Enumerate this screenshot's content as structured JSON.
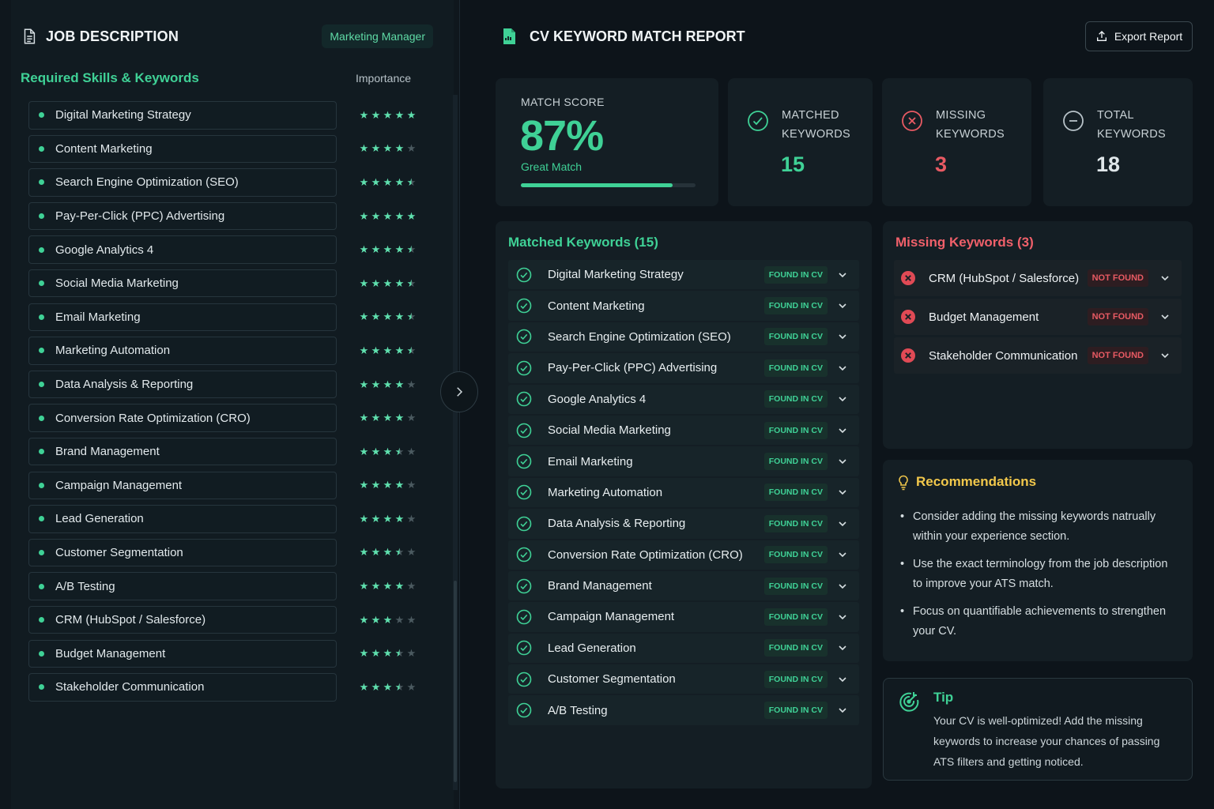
{
  "job_description": {
    "title": "JOB DESCRIPTION",
    "role_badge": "Marketing Manager",
    "section_title": "Required Skills & Keywords",
    "importance_label": "Importance",
    "skills": [
      {
        "name": "Digital Marketing Strategy",
        "rating": 5
      },
      {
        "name": "Content Marketing",
        "rating": 4
      },
      {
        "name": "Search Engine Optimization (SEO)",
        "rating": 4.5
      },
      {
        "name": "Pay-Per-Click (PPC) Advertising",
        "rating": 5
      },
      {
        "name": "Google Analytics 4",
        "rating": 4.5
      },
      {
        "name": "Social Media Marketing",
        "rating": 4.5
      },
      {
        "name": "Email Marketing",
        "rating": 4.5
      },
      {
        "name": "Marketing Automation",
        "rating": 4.5
      },
      {
        "name": "Data Analysis & Reporting",
        "rating": 4
      },
      {
        "name": "Conversion Rate Optimization (CRO)",
        "rating": 4
      },
      {
        "name": "Brand Management",
        "rating": 3.5
      },
      {
        "name": "Campaign Management",
        "rating": 4
      },
      {
        "name": "Lead Generation",
        "rating": 4
      },
      {
        "name": "Customer Segmentation",
        "rating": 3.5
      },
      {
        "name": "A/B Testing",
        "rating": 4
      },
      {
        "name": "CRM (HubSpot / Salesforce)",
        "rating": 3
      },
      {
        "name": "Budget Management",
        "rating": 3.5
      },
      {
        "name": "Stakeholder Communication",
        "rating": 3.5
      }
    ]
  },
  "report": {
    "title": "CV KEYWORD MATCH REPORT",
    "export_label": "Export Report",
    "match_score_label": "MATCH SCORE",
    "match_score": "87%",
    "match_score_fraction": 0.87,
    "match_quality": "Great Match",
    "matched_label": "MATCHED KEYWORDS",
    "matched_count": "15",
    "missing_label": "MISSING KEYWORDS",
    "missing_count": "3",
    "total_label": "TOTAL KEYWORDS",
    "total_count": "18",
    "matched_title": "Matched Keywords (15)",
    "found_badge": "FOUND IN CV",
    "matched": [
      "Digital Marketing Strategy",
      "Content Marketing",
      "Search Engine Optimization (SEO)",
      "Pay-Per-Click (PPC) Advertising",
      "Google Analytics 4",
      "Social Media Marketing",
      "Email Marketing",
      "Marketing Automation",
      "Data Analysis & Reporting",
      "Conversion Rate Optimization (CRO)",
      "Brand Management",
      "Campaign Management",
      "Lead Generation",
      "Customer Segmentation",
      "A/B Testing"
    ],
    "missing_title": "Missing Keywords (3)",
    "not_found_badge": "NOT FOUND",
    "missing": [
      "CRM (HubSpot / Salesforce)",
      "Budget Management",
      "Stakeholder Communication"
    ],
    "recommendations_title": "Recommendations",
    "recommendations": [
      "Consider adding the missing keywords natrually within your experience section.",
      "Use the exact terminology from the job description to improve your ATS match.",
      "Focus on quantifiable achievements to strengthen your CV."
    ],
    "tip_title": "Tip",
    "tip_text": "Your CV is well-optimized! Add the missing keywords to increase your chances of passing ATS filters and getting noticed."
  },
  "colors": {
    "accent": "#3fd196",
    "danger": "#e85a63",
    "warning": "#f2c84b",
    "background": "#0d141a"
  },
  "icons": {
    "jd": "document-icon",
    "report": "report-file-icon",
    "export": "upload-icon",
    "matched": "check-circle-icon",
    "missing": "x-circle-icon",
    "total": "minus-circle-icon",
    "recommendations": "lightbulb-icon",
    "tip": "target-icon",
    "toggle": "chevron-right-icon"
  }
}
